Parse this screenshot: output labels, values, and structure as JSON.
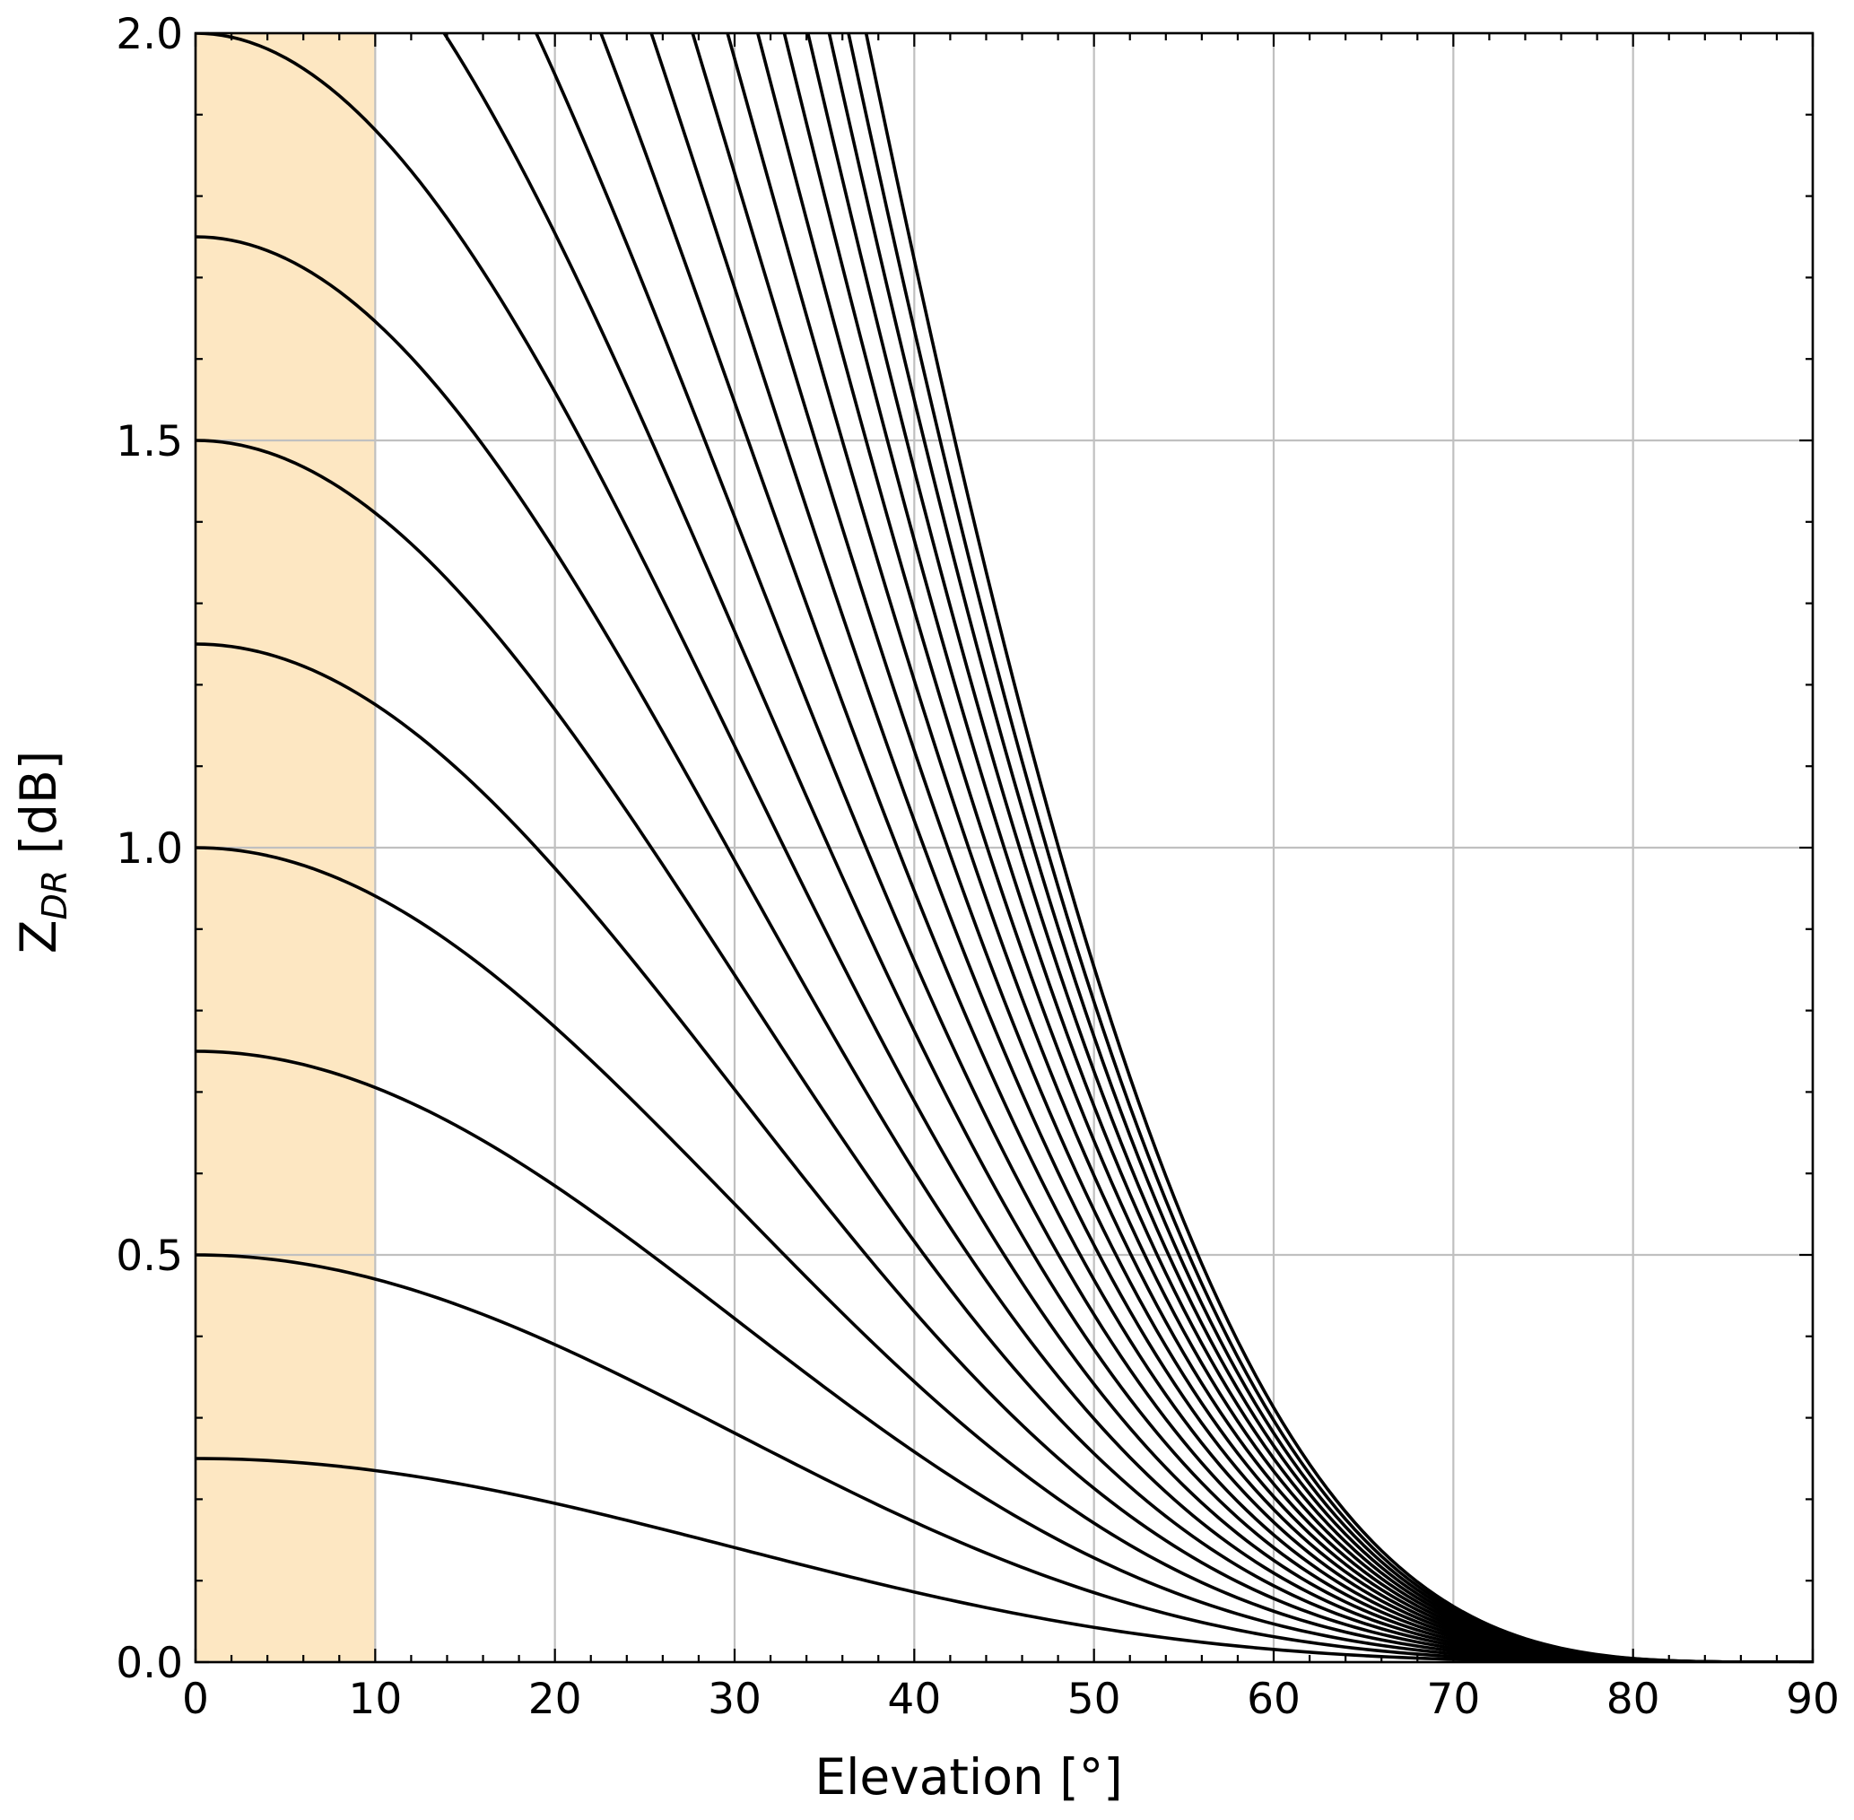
{
  "chart_data": {
    "type": "line",
    "title": "",
    "xlabel": "Elevation [°]",
    "ylabel_main": "Z",
    "ylabel_subscript": "DR",
    "ylabel_unit": " [dB]",
    "xlim": [
      0,
      90
    ],
    "ylim": [
      0.0,
      2.0
    ],
    "x_major_ticks": [
      "0",
      "10",
      "20",
      "30",
      "40",
      "50",
      "60",
      "70",
      "80",
      "90"
    ],
    "y_major_ticks": [
      "0.0",
      "0.5",
      "1.0",
      "1.5",
      "2.0"
    ],
    "x_minor_step": 2,
    "y_minor_step": 0.1,
    "grid": true,
    "shaded_region": {
      "x_from": 0,
      "x_to": 10,
      "color": "#fde7c2"
    },
    "line_color": "#000000",
    "x_sample_step": 0.5,
    "model": "Z_DR(θ) = Z_DR(0°) · cos^4(θ); one black curve per Z_DR(0°) value",
    "series": [
      {
        "zdr_at_0deg": 0.25
      },
      {
        "zdr_at_0deg": 0.5
      },
      {
        "zdr_at_0deg": 0.75
      },
      {
        "zdr_at_0deg": 1.0
      },
      {
        "zdr_at_0deg": 1.25
      },
      {
        "zdr_at_0deg": 1.5
      },
      {
        "zdr_at_0deg": 1.75
      },
      {
        "zdr_at_0deg": 2.0
      },
      {
        "zdr_at_0deg": 2.25
      },
      {
        "zdr_at_0deg": 2.5
      },
      {
        "zdr_at_0deg": 2.75
      },
      {
        "zdr_at_0deg": 3.0
      },
      {
        "zdr_at_0deg": 3.25
      },
      {
        "zdr_at_0deg": 3.5
      },
      {
        "zdr_at_0deg": 3.75
      },
      {
        "zdr_at_0deg": 4.0
      },
      {
        "zdr_at_0deg": 4.25
      },
      {
        "zdr_at_0deg": 4.5
      },
      {
        "zdr_at_0deg": 4.75
      },
      {
        "zdr_at_0deg": 5.0
      }
    ]
  }
}
